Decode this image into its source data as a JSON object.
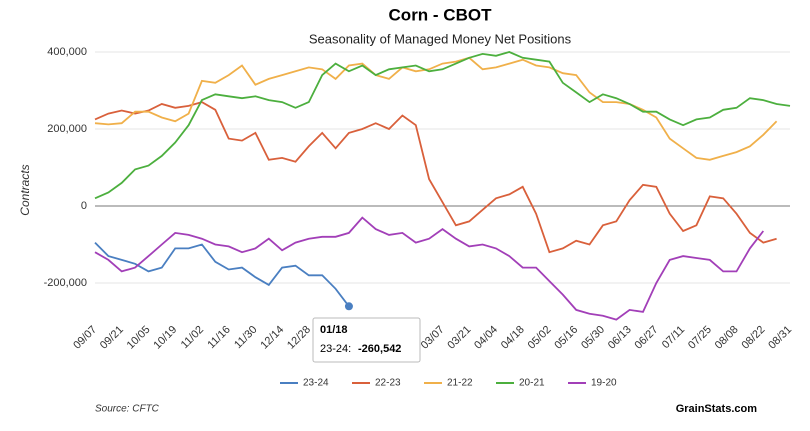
{
  "chart_data": {
    "type": "line",
    "title": "Corn - CBOT",
    "subtitle": "Seasonality of Managed Money Net Positions",
    "y_label": "Contracts",
    "source": "Source: CFTC",
    "brand": "GrainStats.com",
    "tooltip": {
      "title": "01/18",
      "label": "23-24:",
      "value": "-260,542"
    },
    "categories": [
      "09/07",
      null,
      "09/21",
      null,
      "10/05",
      null,
      "10/19",
      null,
      "11/02",
      null,
      "11/16",
      null,
      "11/30",
      null,
      "12/14",
      null,
      "12/28",
      null,
      null,
      null,
      null,
      null,
      null,
      null,
      null,
      null,
      "03/07",
      null,
      "03/21",
      null,
      "04/04",
      null,
      "04/18",
      null,
      "05/02",
      null,
      "05/16",
      null,
      "05/30",
      null,
      "06/13",
      null,
      "06/27",
      null,
      "07/11",
      null,
      "07/25",
      null,
      "08/08",
      null,
      "08/22",
      null,
      "08/31"
    ],
    "ylim": [
      -300000,
      400000
    ],
    "yticks": [
      {
        "value": -200000,
        "label": "-200,000"
      },
      0,
      {
        "value": 200000,
        "label": "200,000"
      },
      {
        "value": 400000,
        "label": "400,000"
      }
    ],
    "grid": true,
    "legend": "bottom",
    "series": [
      {
        "name": "23-24",
        "color": "#4a7fc1",
        "values": [
          -95000,
          -130000,
          -140000,
          -150000,
          -170000,
          -160000,
          -110000,
          -110000,
          -100000,
          -145000,
          -165000,
          -160000,
          -185000,
          -205000,
          -160000,
          -155000,
          -180000,
          -180000,
          -215000,
          -260542,
          null,
          null,
          null,
          null,
          null,
          null,
          null,
          null,
          null,
          null,
          null,
          null,
          null,
          null,
          null,
          null,
          null,
          null,
          null,
          null,
          null,
          null,
          null,
          null,
          null,
          null,
          null,
          null,
          null,
          null,
          null,
          null,
          null
        ]
      },
      {
        "name": "22-23",
        "color": "#d9603b",
        "values": [
          225000,
          240000,
          248000,
          240000,
          248000,
          265000,
          255000,
          260000,
          270000,
          250000,
          175000,
          170000,
          190000,
          120000,
          125000,
          115000,
          155000,
          190000,
          150000,
          190000,
          200000,
          215000,
          200000,
          235000,
          210000,
          70000,
          10000,
          -50000,
          -40000,
          -10000,
          20000,
          30000,
          50000,
          -20000,
          -120000,
          -110000,
          -90000,
          -100000,
          -50000,
          -40000,
          15000,
          55000,
          50000,
          -20000,
          -65000,
          -50000,
          25000,
          20000,
          -20000,
          -70000,
          -95000,
          -85000,
          null
        ]
      },
      {
        "name": "21-22",
        "color": "#f0b04a",
        "values": [
          215000,
          212000,
          215000,
          245000,
          245000,
          230000,
          220000,
          240000,
          325000,
          320000,
          340000,
          365000,
          315000,
          330000,
          340000,
          350000,
          360000,
          355000,
          330000,
          365000,
          370000,
          340000,
          330000,
          360000,
          350000,
          355000,
          370000,
          375000,
          385000,
          355000,
          360000,
          370000,
          380000,
          365000,
          360000,
          345000,
          340000,
          295000,
          270000,
          270000,
          265000,
          250000,
          230000,
          175000,
          150000,
          125000,
          120000,
          130000,
          140000,
          155000,
          185000,
          220000,
          null
        ]
      },
      {
        "name": "20-21",
        "color": "#4caf3e",
        "values": [
          20000,
          35000,
          60000,
          95000,
          105000,
          130000,
          165000,
          210000,
          275000,
          290000,
          285000,
          280000,
          285000,
          275000,
          270000,
          255000,
          270000,
          340000,
          370000,
          350000,
          365000,
          340000,
          355000,
          360000,
          365000,
          350000,
          355000,
          370000,
          385000,
          395000,
          390000,
          400000,
          385000,
          380000,
          375000,
          320000,
          295000,
          270000,
          290000,
          280000,
          265000,
          245000,
          245000,
          225000,
          210000,
          225000,
          230000,
          250000,
          255000,
          280000,
          275000,
          265000,
          260000
        ]
      },
      {
        "name": "19-20",
        "color": "#a23fb8",
        "values": [
          -120000,
          -140000,
          -170000,
          -160000,
          -130000,
          -100000,
          -70000,
          -75000,
          -85000,
          -100000,
          -105000,
          -120000,
          -110000,
          -85000,
          -115000,
          -95000,
          -85000,
          -80000,
          -80000,
          -70000,
          -30000,
          -60000,
          -75000,
          -70000,
          -95000,
          -85000,
          -60000,
          -85000,
          -105000,
          -100000,
          -110000,
          -130000,
          -160000,
          -160000,
          -195000,
          -230000,
          -270000,
          -280000,
          -285000,
          -295000,
          -270000,
          -275000,
          -200000,
          -140000,
          -130000,
          -135000,
          -140000,
          -170000,
          -170000,
          -110000,
          -65000,
          null,
          null
        ]
      }
    ]
  }
}
